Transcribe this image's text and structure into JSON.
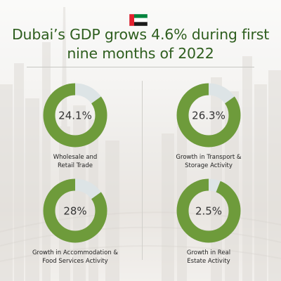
{
  "headline": "Dubai’s GDP grows 4.6% during first nine months of 2022",
  "colors": {
    "ring": "#6e9b3b",
    "ring_remainder": "#dde4e6",
    "title": "#2e5e1e"
  },
  "flag_icon": "uae-flag-icon",
  "stats": [
    {
      "value_text": "24.1%",
      "fill_fraction": 0.85,
      "caption": "Wholesale and\nRetail Trade"
    },
    {
      "value_text": "26.3%",
      "fill_fraction": 0.85,
      "caption": "Growth in Transport &\nStorage Activity"
    },
    {
      "value_text": "28%",
      "fill_fraction": 0.85,
      "caption": "Growth in Accommodation &\nFood Services Activity"
    },
    {
      "value_text": "2.5%",
      "fill_fraction": 0.94,
      "caption": "Growth in Real\nEstate Activity"
    }
  ]
}
